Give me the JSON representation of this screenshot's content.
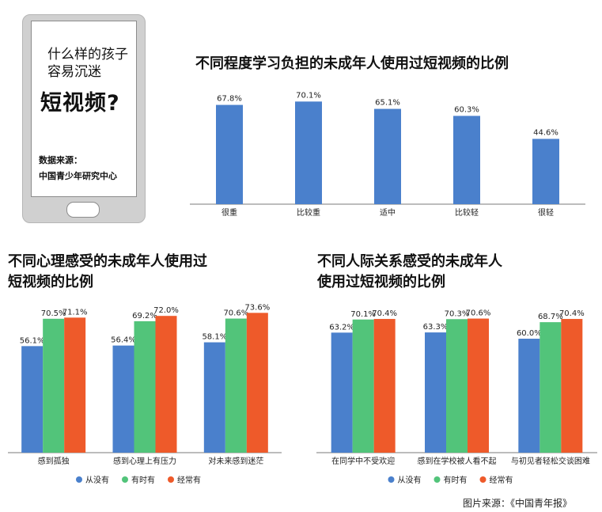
{
  "colors": {
    "blue": "#4a80cc",
    "green": "#52c47a",
    "orange": "#ee5a2a",
    "axis": "#7a7a7a"
  },
  "phone": {
    "question_line1": "什么样的孩子",
    "question_line2": "容易沉迷",
    "headline": "短视频?",
    "source_label": "数据来源：",
    "source_name": "中国青少年研究中心"
  },
  "legend_items": [
    "从没有",
    "有时有",
    "经常有"
  ],
  "footer": "图片来源：《中国青年报》",
  "chart_data": [
    {
      "type": "bar",
      "title": "不同程度学习负担的未成年人使用过短视频的比例",
      "categories": [
        "很重",
        "比较重",
        "适中",
        "比较轻",
        "很轻"
      ],
      "values": [
        67.8,
        70.1,
        65.1,
        60.3,
        44.6
      ],
      "value_labels": [
        "67.8%",
        "70.1%",
        "65.1%",
        "60.3%",
        "44.6%"
      ],
      "ylim": [
        0,
        80
      ],
      "xlabel": "",
      "ylabel": "",
      "grid": false
    },
    {
      "type": "bar",
      "title_line1": "不同心理感受的未成年人使用过",
      "title_line2": "短视频的比例",
      "categories": [
        "感到孤独",
        "感到心理上有压力",
        "对未来感到迷茫"
      ],
      "series": [
        {
          "name": "从没有",
          "values": [
            56.1,
            56.4,
            58.1
          ],
          "labels": [
            "56.1%",
            "56.4%",
            "58.1%"
          ]
        },
        {
          "name": "有时有",
          "values": [
            70.5,
            69.2,
            70.6
          ],
          "labels": [
            "70.5%",
            "69.2%",
            "70.6%"
          ]
        },
        {
          "name": "经常有",
          "values": [
            71.1,
            72.0,
            73.6
          ],
          "labels": [
            "71.1%",
            "72.0%",
            "73.6%"
          ]
        }
      ],
      "ylim": [
        0,
        80
      ],
      "legend": "bottom",
      "grid": false
    },
    {
      "type": "bar",
      "title_line1": "不同人际关系感受的未成年人",
      "title_line2": "使用过短视频的比例",
      "categories": [
        "在同学中不受欢迎",
        "感到在学校被人看不起",
        "与初见者轻松交谈困难"
      ],
      "series": [
        {
          "name": "从没有",
          "values": [
            63.2,
            63.3,
            60.0
          ],
          "labels": [
            "63.2%",
            "63.3%",
            "60.0%"
          ]
        },
        {
          "name": "有时有",
          "values": [
            70.1,
            70.3,
            68.7
          ],
          "labels": [
            "70.1%",
            "70.3%",
            "68.7%"
          ]
        },
        {
          "name": "经常有",
          "values": [
            70.4,
            70.6,
            70.4
          ],
          "labels": [
            "70.4%",
            "70.6%",
            "70.4%"
          ]
        }
      ],
      "ylim": [
        0,
        80
      ],
      "legend": "bottom",
      "grid": false
    }
  ]
}
